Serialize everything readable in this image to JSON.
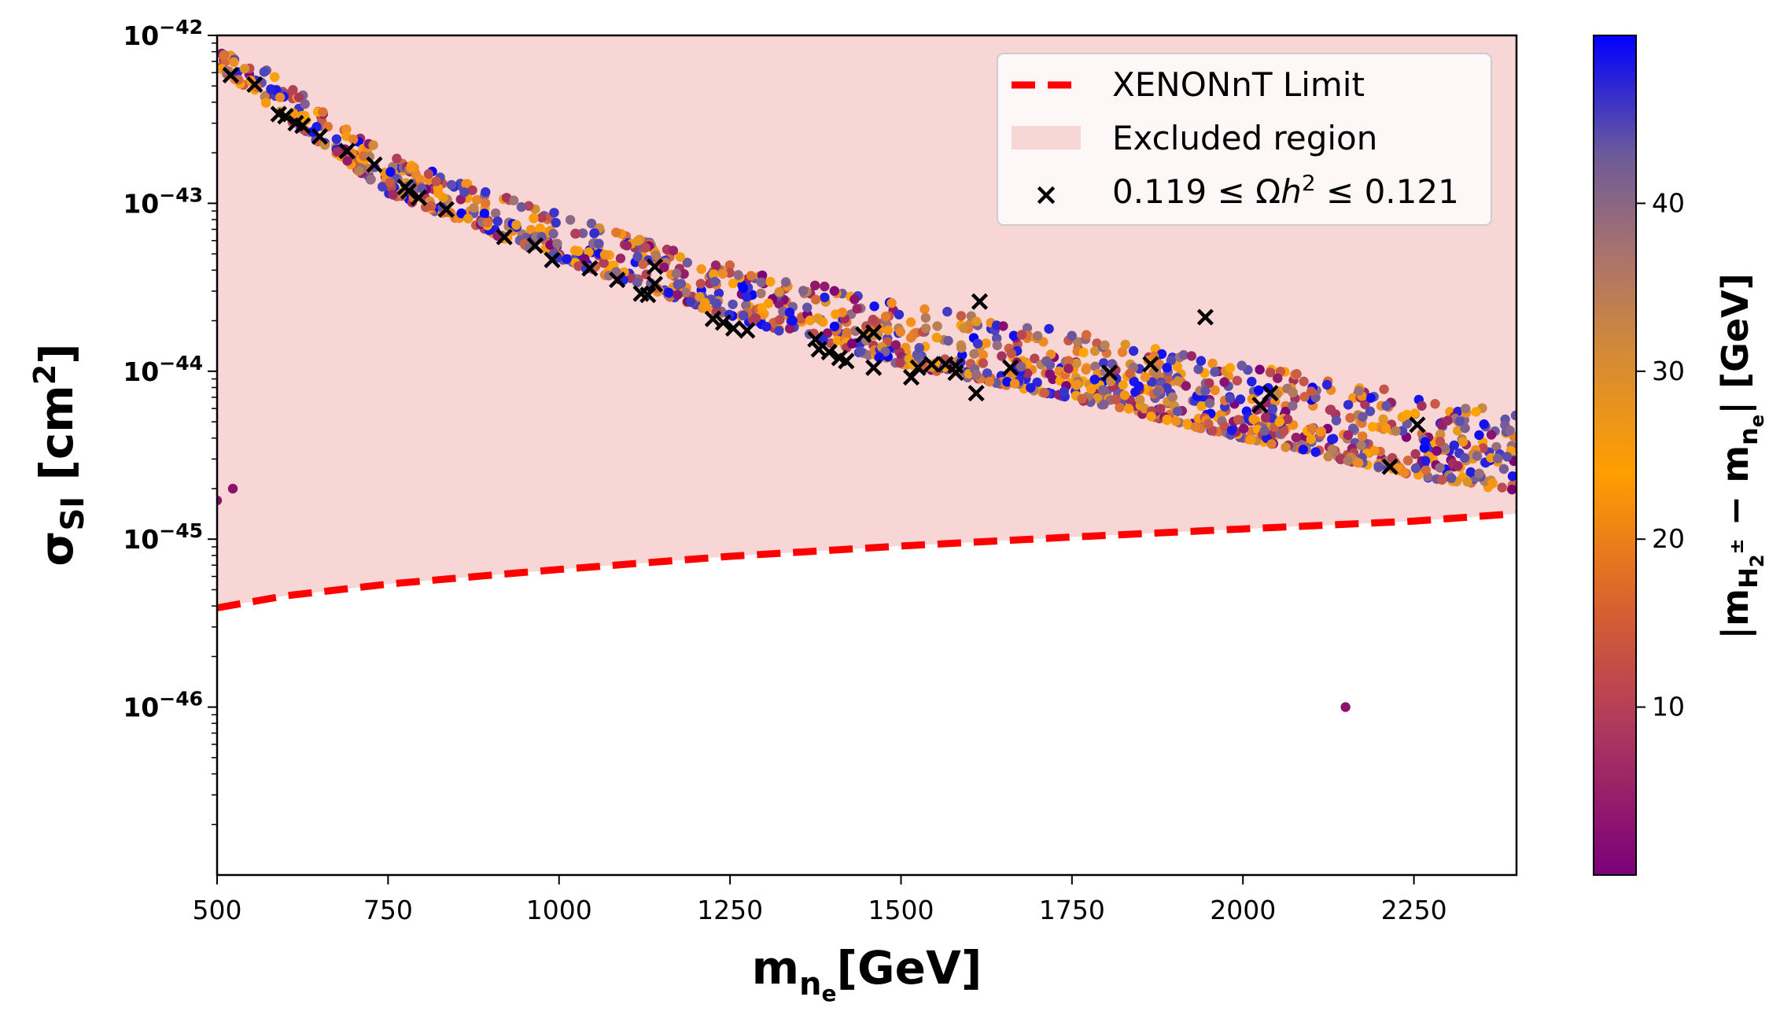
{
  "chart_data": {
    "type": "scatter",
    "xlabel": "m_{n_e}[GeV]",
    "ylabel": "σ_SI [cm^2]",
    "xlim": [
      500,
      2400
    ],
    "ylim_log10": [
      -47,
      -42
    ],
    "y_scale": "log",
    "x_ticks": [
      500,
      750,
      1000,
      1250,
      1500,
      1750,
      2000,
      2250
    ],
    "y_ticks": [
      {
        "exp": -42,
        "label": "10−42"
      },
      {
        "exp": -43,
        "label": "10−43"
      },
      {
        "exp": -44,
        "label": "10−44"
      },
      {
        "exp": -45,
        "label": "10−45"
      },
      {
        "exp": -46,
        "label": "10−46"
      }
    ],
    "colorbar": {
      "label": "|m_{H2±} − m_{n_e}| [GeV]",
      "range": [
        0,
        50
      ],
      "ticks": [
        10,
        20,
        30,
        40
      ],
      "colormap": "plasma-like",
      "colors": [
        "#7a007a",
        "#c0504d",
        "#f08a24",
        "#ffa500",
        "#9a6f7a",
        "#5a4fae",
        "#0000ff"
      ]
    },
    "legend": {
      "placement": "top-right",
      "entries": [
        {
          "label": "XENONnT Limit",
          "style": "dashed-line",
          "color": "#ff0000"
        },
        {
          "label": "Excluded region",
          "style": "patch",
          "color": "#f8d6d6"
        },
        {
          "label": "0.119 ≤ Ωh² ≤ 0.121",
          "style": "x-marker",
          "color": "#000000"
        }
      ]
    },
    "xenonnt_limit": {
      "x": [
        500,
        600,
        750,
        900,
        1000,
        1250,
        1500,
        1750,
        2000,
        2250,
        2400
      ],
      "y": [
        3.9e-46,
        4.6e-46,
        5.4e-46,
        6.1e-46,
        6.6e-46,
        7.9e-46,
        9.1e-46,
        1.03e-45,
        1.15e-45,
        1.28e-45,
        1.42e-45
      ]
    },
    "scatter_band": {
      "lower_edge": {
        "x": [
          500,
          750,
          1000,
          1250,
          1500,
          1750,
          2000,
          2250,
          2400
        ],
        "y": [
          6.5e-43,
          1.15e-43,
          4.6e-44,
          2.1e-44,
          1.1e-44,
          6.9e-45,
          4e-45,
          2.4e-45,
          1.9e-45
        ]
      },
      "spread_decades": 0.35,
      "n_points": 1400
    },
    "outliers": [
      {
        "x": 523,
        "y": 2e-45,
        "c": 2
      },
      {
        "x": 500,
        "y": 1.7e-45,
        "c": 2
      },
      {
        "x": 2150,
        "y": 1e-46,
        "c": 2
      }
    ],
    "relic_points": [
      {
        "x": 520,
        "y": 5.8e-43
      },
      {
        "x": 555,
        "y": 5.1e-43
      },
      {
        "x": 590,
        "y": 3.4e-43
      },
      {
        "x": 600,
        "y": 3.3e-43
      },
      {
        "x": 615,
        "y": 3e-43
      },
      {
        "x": 625,
        "y": 2.9e-43
      },
      {
        "x": 650,
        "y": 2.5e-43
      },
      {
        "x": 690,
        "y": 2.05e-43
      },
      {
        "x": 730,
        "y": 1.7e-43
      },
      {
        "x": 775,
        "y": 1.25e-43
      },
      {
        "x": 780,
        "y": 1.18e-43
      },
      {
        "x": 795,
        "y": 1.08e-43
      },
      {
        "x": 835,
        "y": 9.2e-44
      },
      {
        "x": 920,
        "y": 6.3e-44
      },
      {
        "x": 965,
        "y": 5.6e-44
      },
      {
        "x": 990,
        "y": 4.6e-44
      },
      {
        "x": 1045,
        "y": 4.1e-44
      },
      {
        "x": 1085,
        "y": 3.5e-44
      },
      {
        "x": 1120,
        "y": 2.9e-44
      },
      {
        "x": 1130,
        "y": 2.85e-44
      },
      {
        "x": 1140,
        "y": 4.2e-44
      },
      {
        "x": 1140,
        "y": 3.3e-44
      },
      {
        "x": 1225,
        "y": 2.05e-44
      },
      {
        "x": 1240,
        "y": 1.95e-44
      },
      {
        "x": 1255,
        "y": 1.8e-44
      },
      {
        "x": 1275,
        "y": 1.75e-44
      },
      {
        "x": 1375,
        "y": 1.55e-44
      },
      {
        "x": 1380,
        "y": 1.35e-44
      },
      {
        "x": 1395,
        "y": 1.3e-44
      },
      {
        "x": 1410,
        "y": 1.2e-44
      },
      {
        "x": 1420,
        "y": 1.15e-44
      },
      {
        "x": 1445,
        "y": 1.65e-44
      },
      {
        "x": 1460,
        "y": 1.7e-44
      },
      {
        "x": 1460,
        "y": 1.05e-44
      },
      {
        "x": 1515,
        "y": 9.2e-45
      },
      {
        "x": 1525,
        "y": 1.05e-44
      },
      {
        "x": 1545,
        "y": 1.1e-44
      },
      {
        "x": 1565,
        "y": 1.1e-44
      },
      {
        "x": 1580,
        "y": 1.08e-44
      },
      {
        "x": 1580,
        "y": 9.8e-45
      },
      {
        "x": 1610,
        "y": 7.4e-45
      },
      {
        "x": 1615,
        "y": 2.6e-44
      },
      {
        "x": 1660,
        "y": 1.05e-44
      },
      {
        "x": 1805,
        "y": 9.8e-45
      },
      {
        "x": 1865,
        "y": 1.1e-44
      },
      {
        "x": 1945,
        "y": 2.1e-44
      },
      {
        "x": 2025,
        "y": 6.3e-45
      },
      {
        "x": 2040,
        "y": 7.4e-45
      },
      {
        "x": 2215,
        "y": 2.7e-45
      },
      {
        "x": 2255,
        "y": 4.8e-45
      }
    ]
  }
}
